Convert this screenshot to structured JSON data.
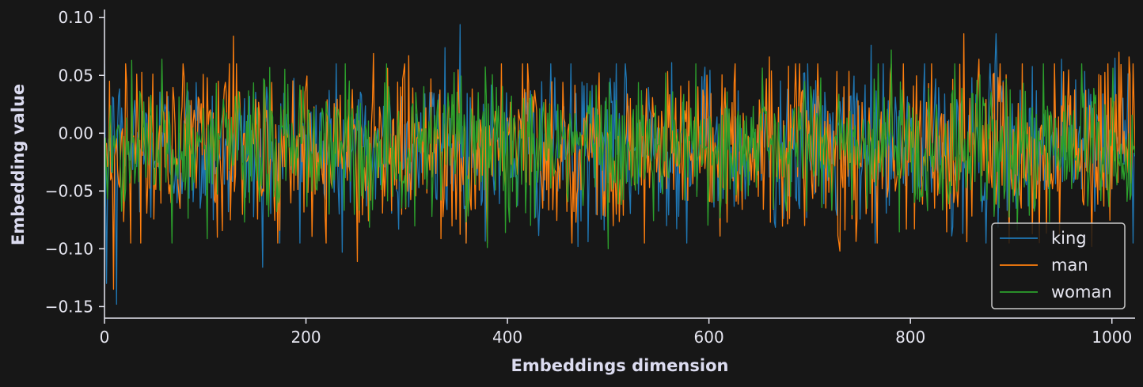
{
  "chart_data": {
    "type": "line",
    "title": "",
    "xlabel": "Embeddings dimension",
    "ylabel": "Embedding value",
    "xlim": [
      0,
      1023
    ],
    "ylim": [
      -0.16,
      0.107
    ],
    "xticks": [
      0,
      200,
      400,
      600,
      800,
      1000
    ],
    "xtick_labels": [
      "0",
      "200",
      "400",
      "600",
      "800",
      "1000"
    ],
    "yticks": [
      0.1,
      0.05,
      0.0,
      -0.05,
      -0.1,
      -0.15
    ],
    "ytick_labels": [
      "0.10",
      "0.05",
      "0.00",
      "−0.05",
      "−0.10",
      "−0.15"
    ],
    "grid": false,
    "legend_position": "bottom-right",
    "n_points": 1024,
    "series": [
      {
        "name": "king",
        "color": "#1f77b4",
        "mean": -0.012,
        "std": 0.033,
        "spikes": [
          [
            2,
            -0.13
          ],
          [
            12,
            -0.148
          ],
          [
            157,
            -0.116
          ],
          [
            236,
            -0.103
          ],
          [
            338,
            0.074
          ],
          [
            353,
            0.094
          ],
          [
            470,
            -0.098
          ],
          [
            563,
            0.061
          ],
          [
            761,
            0.076
          ],
          [
            885,
            0.086
          ],
          [
            950,
            0.064
          ],
          [
            1003,
            0.065
          ]
        ]
      },
      {
        "name": "man",
        "color": "#ff7f0e",
        "mean": -0.012,
        "std": 0.036,
        "spikes": [
          [
            5,
            0.045
          ],
          [
            9,
            -0.135
          ],
          [
            128,
            0.084
          ],
          [
            251,
            -0.111
          ],
          [
            267,
            0.069
          ],
          [
            302,
            0.067
          ],
          [
            660,
            0.066
          ],
          [
            730,
            -0.102
          ],
          [
            853,
            0.086
          ],
          [
            868,
            0.064
          ],
          [
            980,
            -0.098
          ],
          [
            1007,
            0.07
          ],
          [
            1017,
            0.066
          ]
        ]
      },
      {
        "name": "woman",
        "color": "#2ca02c",
        "mean": -0.012,
        "std": 0.031,
        "spikes": [
          [
            27,
            0.063
          ],
          [
            57,
            0.064
          ],
          [
            380,
            -0.099
          ],
          [
            500,
            -0.1
          ],
          [
            781,
            0.072
          ]
        ]
      }
    ]
  }
}
